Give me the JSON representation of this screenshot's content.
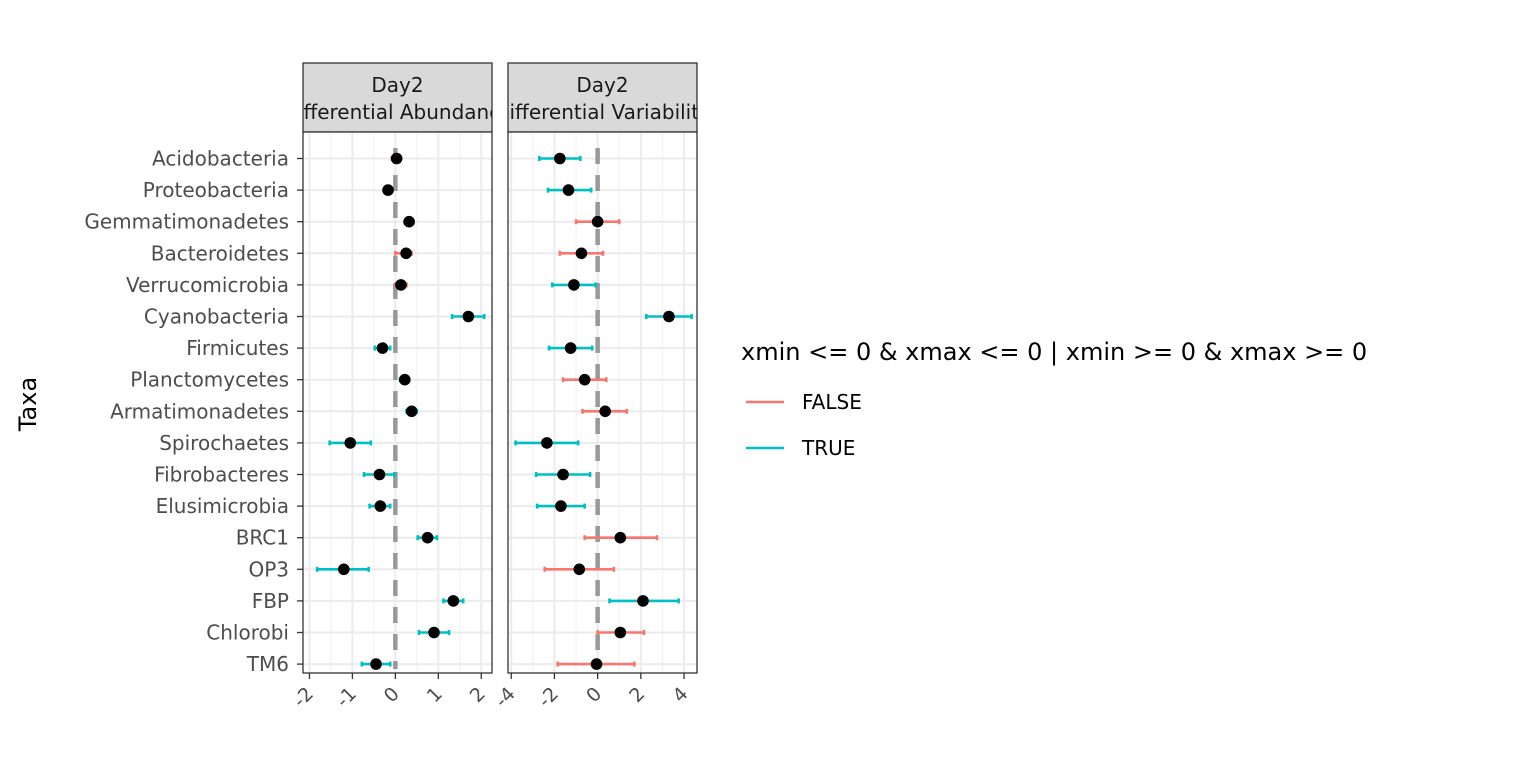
{
  "chart_data": {
    "type": "errorbar-dot",
    "ylabel": "Taxa",
    "taxa": [
      "Acidobacteria",
      "Proteobacteria",
      "Gemmatimonadetes",
      "Bacteroidetes",
      "Verrucomicrobia",
      "Cyanobacteria",
      "Firmicutes",
      "Planctomycetes",
      "Armatimonadetes",
      "Spirochaetes",
      "Fibrobacteres",
      "Elusimicrobia",
      "BRC1",
      "OP3",
      "FBP",
      "Chlorobi",
      "TM6"
    ],
    "legend": {
      "title": "xmin <= 0 & xmax <= 0 | xmin >= 0 & xmax >= 0",
      "items": [
        {
          "label": "FALSE",
          "color": "#F8766D"
        },
        {
          "label": "TRUE",
          "color": "#00BFC4"
        }
      ]
    },
    "panels": [
      {
        "strip": [
          "Day2",
          "Differential Abundance"
        ],
        "xlim": [
          -2.15,
          2.25
        ],
        "ticks": [
          -2,
          -1,
          0,
          1,
          2
        ],
        "tick_labels": [
          "-2",
          "-1",
          "0",
          "1",
          "2"
        ],
        "points": [
          {
            "x": 0.03,
            "xmin": -0.08,
            "xmax": 0.12,
            "sig": false
          },
          {
            "x": -0.17,
            "xmin": -0.26,
            "xmax": -0.08,
            "sig": true
          },
          {
            "x": 0.32,
            "xmin": 0.24,
            "xmax": 0.42,
            "sig": true
          },
          {
            "x": 0.25,
            "xmin": 0.0,
            "xmax": 0.38,
            "sig": false
          },
          {
            "x": 0.13,
            "xmin": 0.0,
            "xmax": 0.26,
            "sig": false
          },
          {
            "x": 1.7,
            "xmin": 1.32,
            "xmax": 2.07,
            "sig": true
          },
          {
            "x": -0.3,
            "xmin": -0.48,
            "xmax": -0.12,
            "sig": true
          },
          {
            "x": 0.22,
            "xmin": 0.11,
            "xmax": 0.32,
            "sig": true
          },
          {
            "x": 0.38,
            "xmin": 0.26,
            "xmax": 0.5,
            "sig": true
          },
          {
            "x": -1.05,
            "xmin": -1.53,
            "xmax": -0.57,
            "sig": true
          },
          {
            "x": -0.37,
            "xmin": -0.73,
            "xmax": -0.02,
            "sig": true
          },
          {
            "x": -0.35,
            "xmin": -0.6,
            "xmax": -0.12,
            "sig": true
          },
          {
            "x": 0.75,
            "xmin": 0.52,
            "xmax": 0.97,
            "sig": true
          },
          {
            "x": -1.2,
            "xmin": -1.82,
            "xmax": -0.62,
            "sig": true
          },
          {
            "x": 1.35,
            "xmin": 1.12,
            "xmax": 1.58,
            "sig": true
          },
          {
            "x": 0.9,
            "xmin": 0.55,
            "xmax": 1.25,
            "sig": true
          },
          {
            "x": -0.45,
            "xmin": -0.78,
            "xmax": -0.12,
            "sig": true
          }
        ]
      },
      {
        "strip": [
          "Day2",
          "Differential Variability"
        ],
        "xlim": [
          -4.15,
          4.6
        ],
        "ticks": [
          -4,
          -2,
          0,
          2,
          4
        ],
        "tick_labels": [
          "-4",
          "-2",
          "0",
          "2",
          "4"
        ],
        "points": [
          {
            "x": -1.75,
            "xmin": -2.7,
            "xmax": -0.8,
            "sig": true
          },
          {
            "x": -1.35,
            "xmin": -2.3,
            "xmax": -0.3,
            "sig": true
          },
          {
            "x": 0.0,
            "xmin": -1.0,
            "xmax": 1.0,
            "sig": false
          },
          {
            "x": -0.75,
            "xmin": -1.75,
            "xmax": 0.25,
            "sig": false
          },
          {
            "x": -1.1,
            "xmin": -2.1,
            "xmax": -0.1,
            "sig": true
          },
          {
            "x": 3.3,
            "xmin": 2.25,
            "xmax": 4.35,
            "sig": true
          },
          {
            "x": -1.25,
            "xmin": -2.25,
            "xmax": -0.25,
            "sig": true
          },
          {
            "x": -0.6,
            "xmin": -1.6,
            "xmax": 0.4,
            "sig": false
          },
          {
            "x": 0.35,
            "xmin": -0.7,
            "xmax": 1.35,
            "sig": false
          },
          {
            "x": -2.35,
            "xmin": -3.8,
            "xmax": -0.9,
            "sig": true
          },
          {
            "x": -1.6,
            "xmin": -2.85,
            "xmax": -0.35,
            "sig": true
          },
          {
            "x": -1.7,
            "xmin": -2.8,
            "xmax": -0.6,
            "sig": true
          },
          {
            "x": 1.05,
            "xmin": -0.6,
            "xmax": 2.75,
            "sig": false
          },
          {
            "x": -0.85,
            "xmin": -2.45,
            "xmax": 0.75,
            "sig": false
          },
          {
            "x": 2.1,
            "xmin": 0.55,
            "xmax": 3.75,
            "sig": true
          },
          {
            "x": 1.05,
            "xmin": 0.0,
            "xmax": 2.15,
            "sig": false
          },
          {
            "x": -0.05,
            "xmin": -1.85,
            "xmax": 1.7,
            "sig": false
          }
        ]
      }
    ]
  }
}
